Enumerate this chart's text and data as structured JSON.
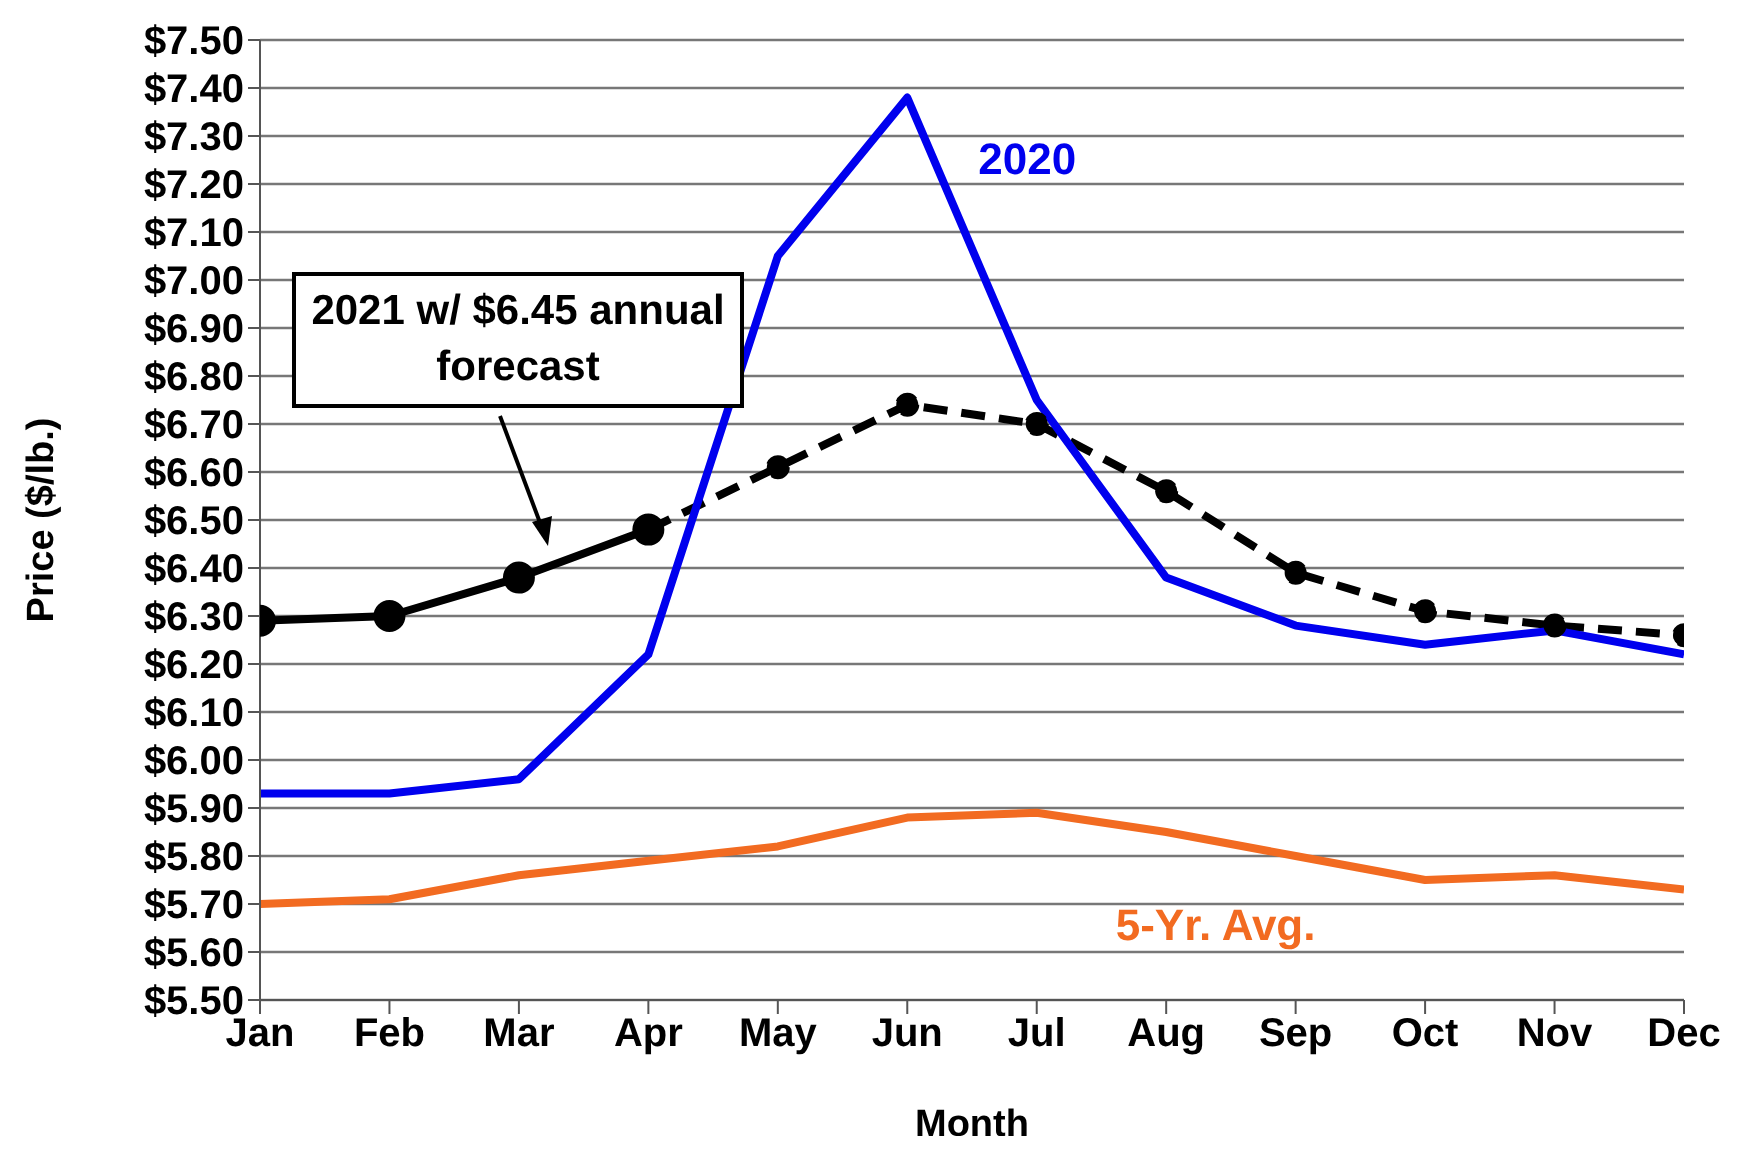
{
  "chart_data": {
    "type": "line",
    "xlabel": "Month",
    "ylabel": "Price ($/lb.)",
    "categories": [
      "Jan",
      "Feb",
      "Mar",
      "Apr",
      "May",
      "Jun",
      "Jul",
      "Aug",
      "Sep",
      "Oct",
      "Nov",
      "Dec"
    ],
    "series": [
      {
        "color": "#000000",
        "marker": "circle",
        "line_style": "solid",
        "values": [
          6.29,
          6.3,
          6.38,
          6.48,
          null,
          null,
          null,
          null,
          null,
          null,
          null,
          null
        ]
      },
      {
        "color": "#000000",
        "marker": "circle",
        "line_style": "dashed",
        "values": [
          null,
          null,
          null,
          6.48,
          6.61,
          6.74,
          6.7,
          6.56,
          6.39,
          6.31,
          6.28,
          6.26
        ]
      },
      {
        "name": "2020",
        "color": "#0000ee",
        "marker": "none",
        "line_style": "solid",
        "values": [
          5.93,
          5.93,
          5.96,
          6.22,
          7.05,
          7.38,
          6.75,
          6.38,
          6.28,
          6.24,
          6.27,
          6.22
        ]
      },
      {
        "name": "5-Yr. Avg.",
        "color": "#f26b21",
        "marker": "none",
        "line_style": "solid",
        "values": [
          5.7,
          5.71,
          5.76,
          5.79,
          5.82,
          5.88,
          5.89,
          5.85,
          5.8,
          5.75,
          5.76,
          5.73
        ]
      }
    ],
    "annotations": [
      "2021 w/ $6.45 annual forecast"
    ],
    "ylim": [
      5.5,
      7.5
    ],
    "yticks": [
      {
        "value": 5.5,
        "label": "$5.50"
      },
      {
        "value": 5.6,
        "label": "$5.60"
      },
      {
        "value": 5.7,
        "label": "$5.70"
      },
      {
        "value": 5.8,
        "label": "$5.80"
      },
      {
        "value": 5.9,
        "label": "$5.90"
      },
      {
        "value": 6.0,
        "label": "$6.00"
      },
      {
        "value": 6.1,
        "label": "$6.10"
      },
      {
        "value": 6.2,
        "label": "$6.20"
      },
      {
        "value": 6.3,
        "label": "$6.30"
      },
      {
        "value": 6.4,
        "label": "$6.40"
      },
      {
        "value": 6.5,
        "label": "$6.50"
      },
      {
        "value": 6.6,
        "label": "$6.60"
      },
      {
        "value": 6.7,
        "label": "$6.70"
      },
      {
        "value": 6.8,
        "label": "$6.80"
      },
      {
        "value": 6.9,
        "label": "$6.90"
      },
      {
        "value": 7.0,
        "label": "$7.00"
      },
      {
        "value": 7.1,
        "label": "$7.10"
      },
      {
        "value": 7.2,
        "label": "$7.20"
      },
      {
        "value": 7.3,
        "label": "$7.30"
      },
      {
        "value": 7.4,
        "label": "$7.40"
      },
      {
        "value": 7.5,
        "label": "$7.50"
      }
    ],
    "grid": "y",
    "legend": false
  }
}
